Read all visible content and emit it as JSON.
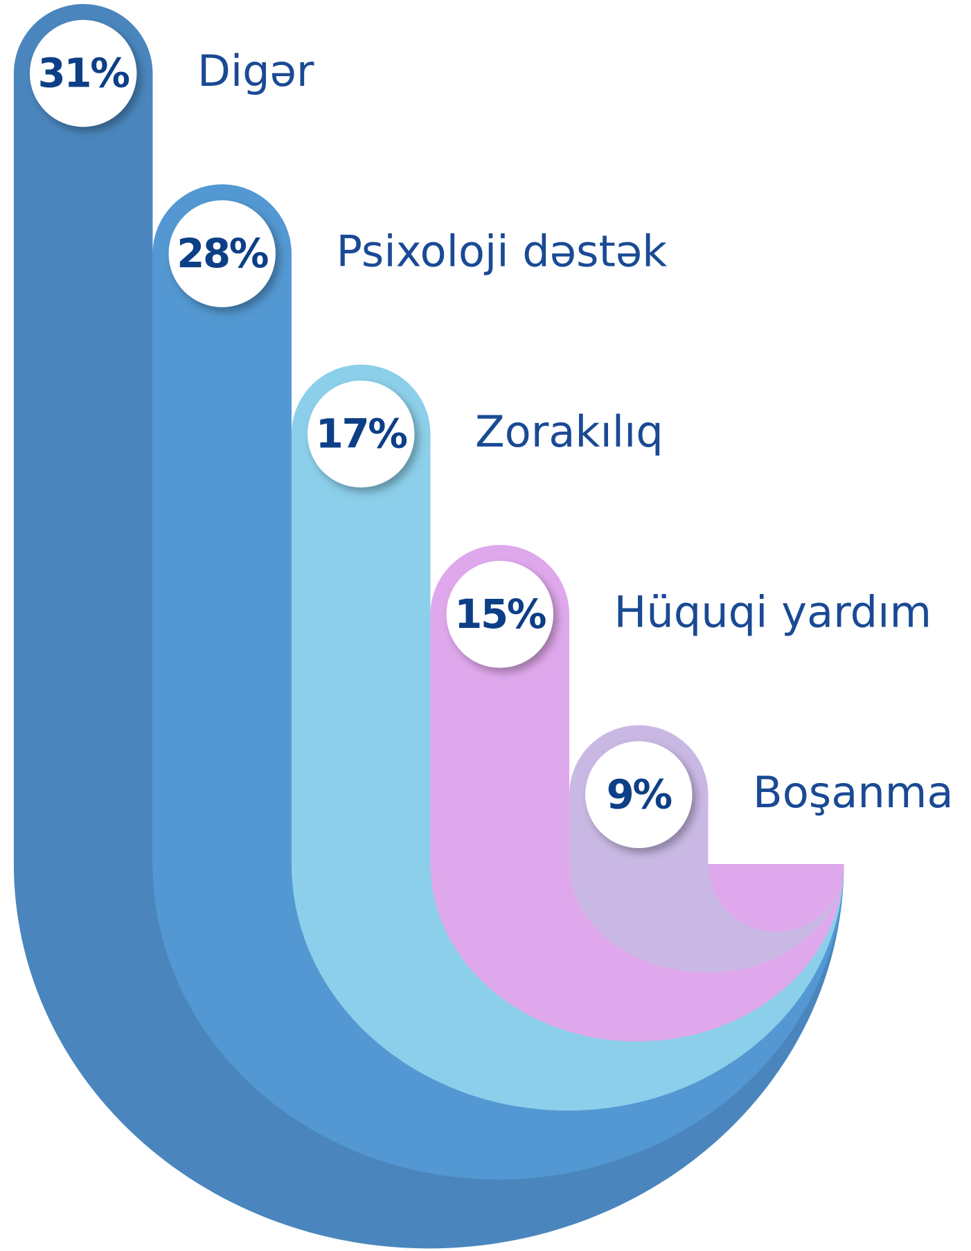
{
  "chart_data": {
    "type": "infographic",
    "categories": [
      "Digər",
      "Psixoloji dəstək",
      "Zorakılıq",
      "Hüquqi yardım",
      "Boşanma"
    ],
    "values": [
      31,
      28,
      17,
      15,
      9
    ],
    "value_labels": [
      "31%",
      "28%",
      "17%",
      "15%",
      "9%"
    ],
    "colors": [
      "#4a86bd",
      "#5398d2",
      "#8ccfea",
      "#e0a8ec",
      "#c9b8e4"
    ]
  }
}
